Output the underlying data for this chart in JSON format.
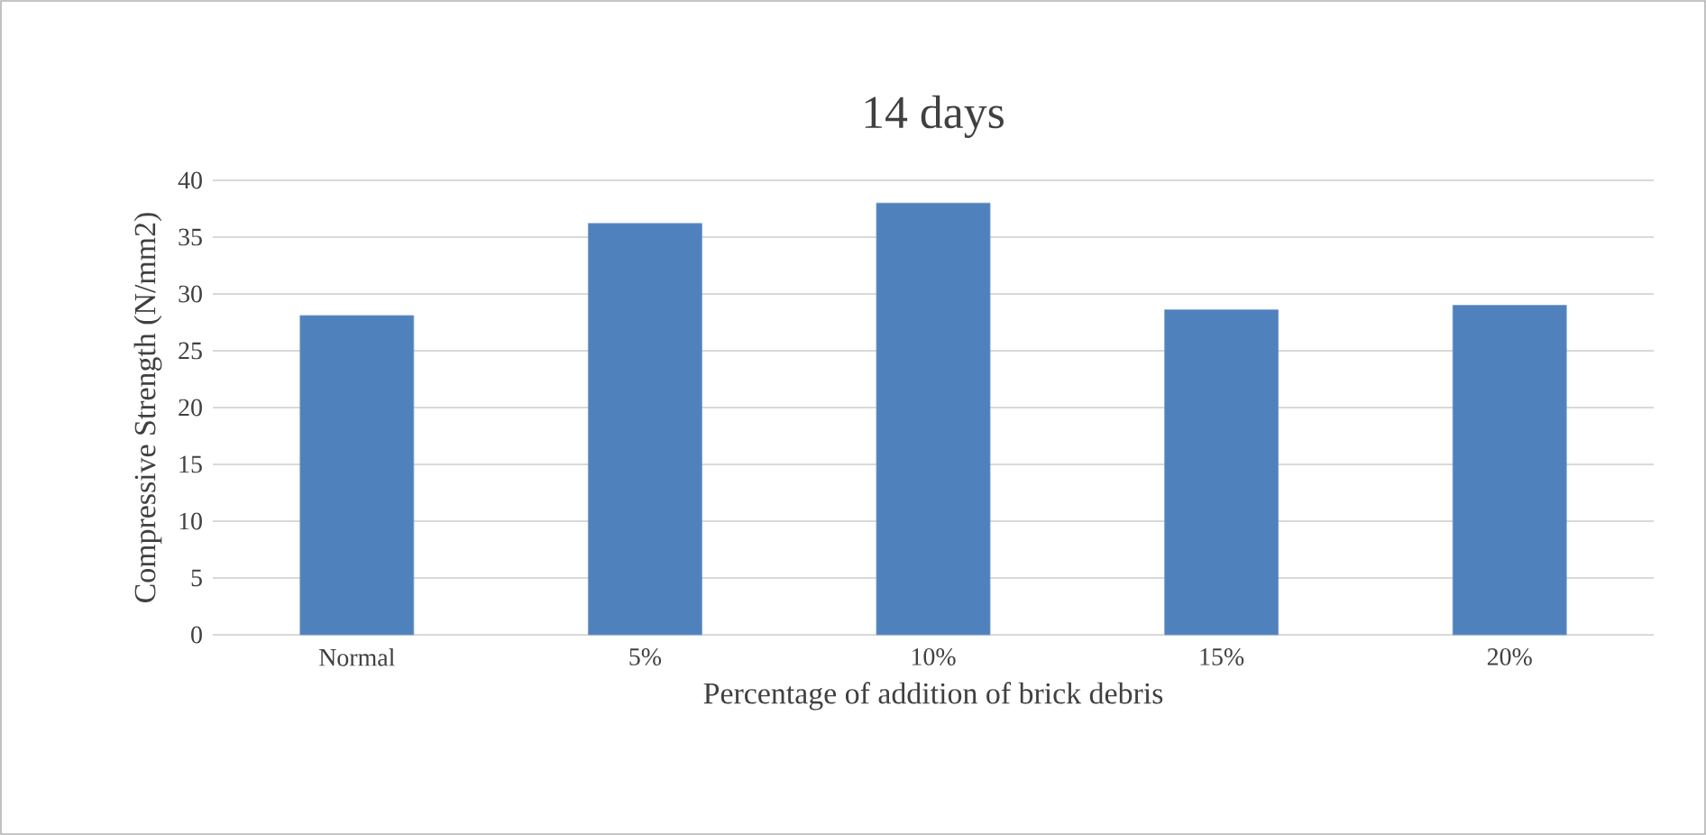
{
  "chart_data": {
    "type": "bar",
    "title": "14 days",
    "xlabel": "Percentage of addition of brick debris",
    "ylabel": "Compressive  Strength (N/mm2)",
    "categories": [
      "Normal",
      "5%",
      "10%",
      "15%",
      "20%"
    ],
    "values": [
      28.1,
      36.2,
      38.0,
      28.6,
      29.0
    ],
    "color": "#4f81bd",
    "ylim": [
      0,
      40
    ],
    "yticks": [
      0,
      5,
      10,
      15,
      20,
      25,
      30,
      35,
      40
    ],
    "grid": "y"
  }
}
